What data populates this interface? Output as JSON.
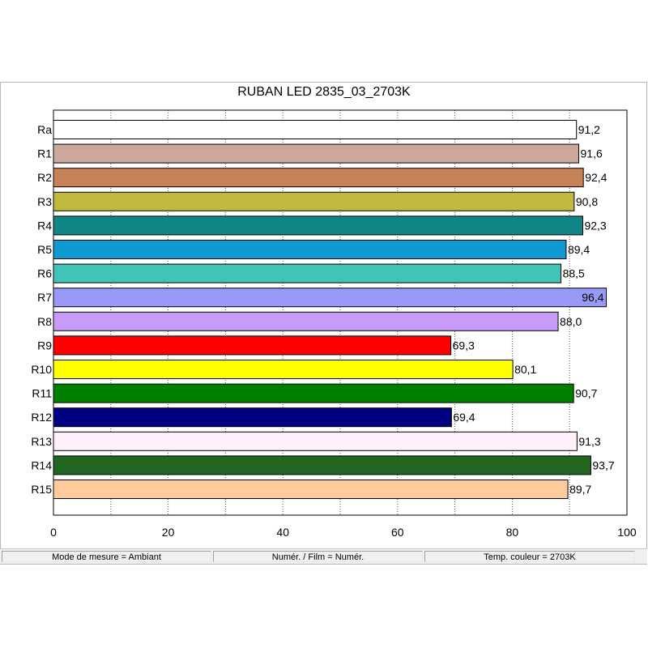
{
  "chart_data": {
    "type": "bar",
    "orientation": "horizontal",
    "title": "RUBAN LED 2835_03_2703K",
    "categories": [
      "Ra",
      "R1",
      "R2",
      "R3",
      "R4",
      "R5",
      "R6",
      "R7",
      "R8",
      "R9",
      "R10",
      "R11",
      "R12",
      "R13",
      "R14",
      "R15"
    ],
    "values": [
      91.2,
      91.6,
      92.4,
      90.8,
      92.3,
      89.4,
      88.5,
      96.4,
      88.0,
      69.3,
      80.1,
      90.7,
      69.4,
      91.3,
      93.7,
      89.7
    ],
    "value_labels": [
      "91,2",
      "91,6",
      "92,4",
      "90,8",
      "92,3",
      "89,4",
      "88,5",
      "96,4",
      "88,0",
      "69,3",
      "80,1",
      "90,7",
      "69,4",
      "91,3",
      "93,7",
      "89,7"
    ],
    "colors": [
      "#ffffff",
      "#cca89b",
      "#c8825a",
      "#bfba3f",
      "#108585",
      "#109ad2",
      "#40c4b8",
      "#9999f8",
      "#c79cf8",
      "#ff0000",
      "#ffff00",
      "#008000",
      "#000080",
      "#fef0fa",
      "#226622",
      "#fecb9b"
    ],
    "xlim": [
      0,
      100
    ],
    "xticks": [
      0,
      20,
      40,
      60,
      80,
      100
    ],
    "grid": true,
    "xlabel": "",
    "ylabel": ""
  },
  "status_bar": {
    "mode": "Mode de mesure = Ambiant",
    "film": "Numér. / Film = Numér.",
    "temp": "Temp. couleur = 2703K"
  }
}
